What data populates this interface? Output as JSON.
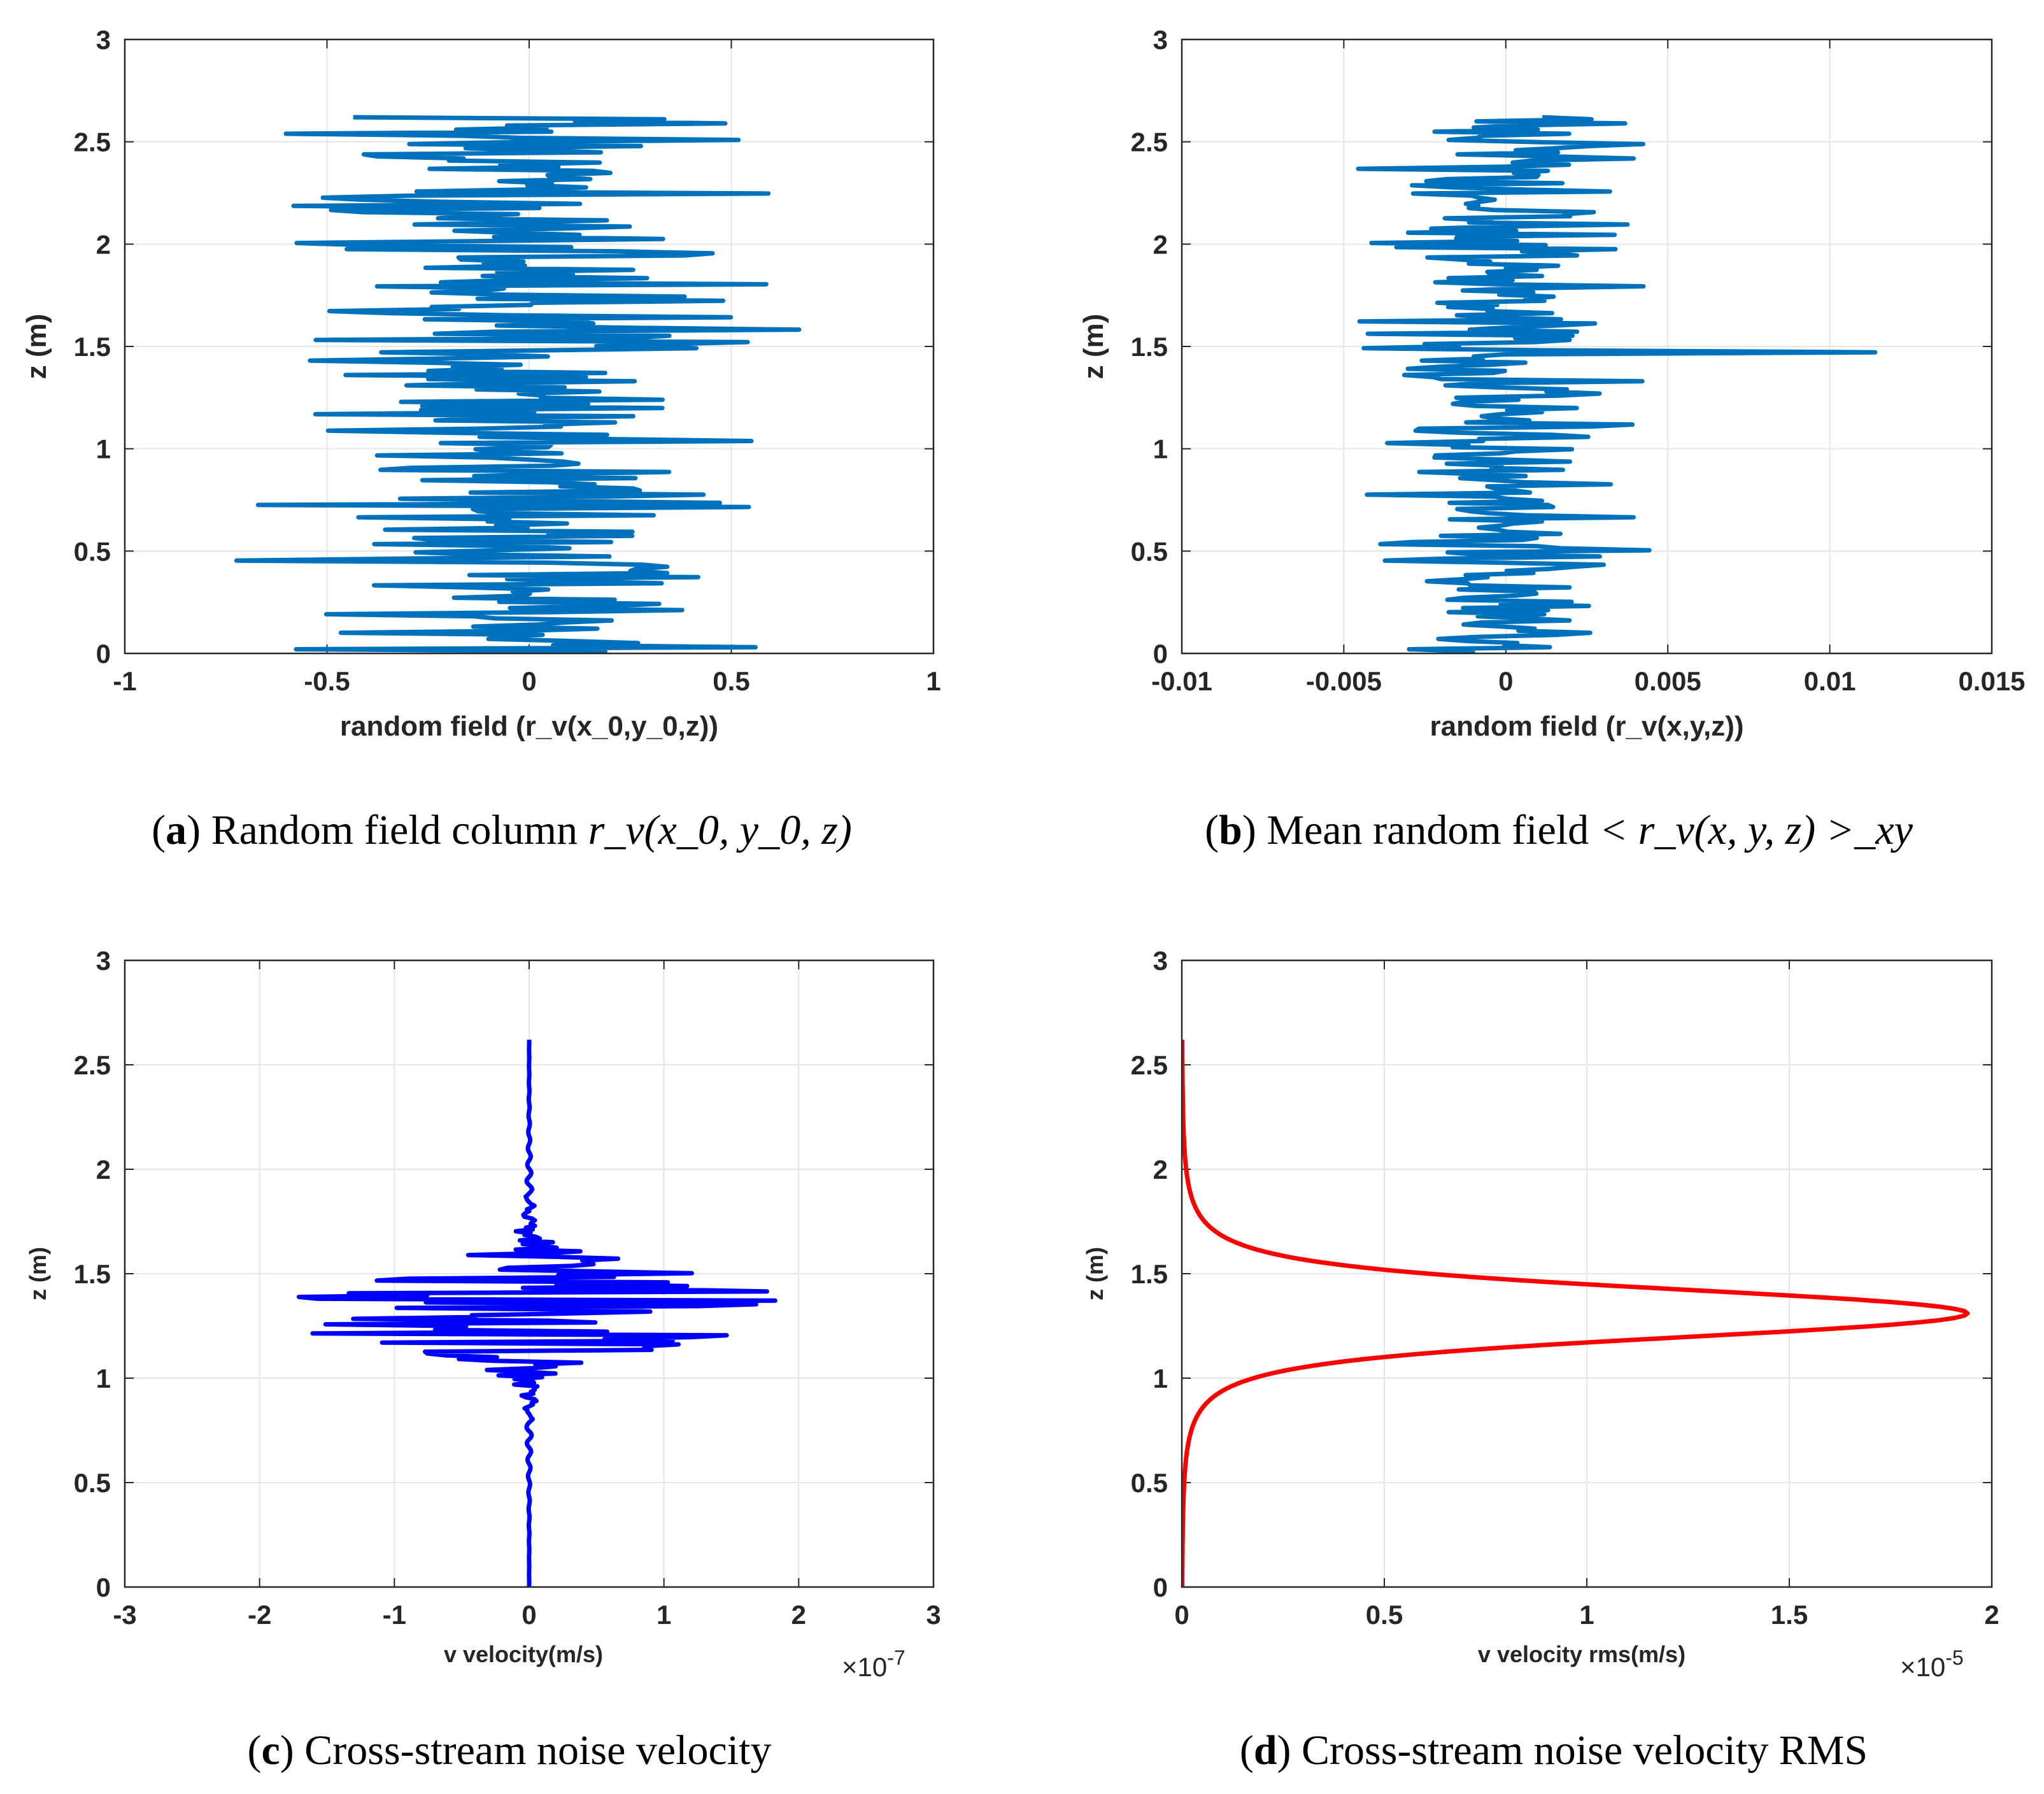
{
  "figure": {
    "panels": [
      {
        "id": "a",
        "caption": {
          "label": "a",
          "text": "Random field column",
          "math": "r_v(x_0, y_0, z)"
        },
        "chart_data": {
          "type": "line",
          "title": "",
          "xlabel": "random field (r_v(x_0,y_0,z))",
          "ylabel": "z (m)",
          "xlim": [
            -1,
            1
          ],
          "ylim": [
            0,
            3
          ],
          "x_ticks": [
            "-1",
            "-0.5",
            "0",
            "0.5",
            "1"
          ],
          "y_ticks": [
            "0",
            "0.5",
            "1",
            "1.5",
            "2",
            "2.5",
            "3"
          ],
          "exponent": "",
          "grid": true,
          "color": "#0072BD",
          "series": [
            {
              "name": "r_v(x0,y0,z)",
              "generator": "noise",
              "amplitude": 0.85,
              "z_max": 2.62,
              "samples": 260,
              "seed": 7,
              "x": [],
              "z": []
            }
          ]
        }
      },
      {
        "id": "b",
        "caption": {
          "label": "b",
          "text": "Mean random field",
          "math": "< r_v(x, y, z) >_xy"
        },
        "chart_data": {
          "type": "line",
          "title": "",
          "xlabel": "random field (r_v(x,y,z))",
          "ylabel": "z (m)",
          "xlim": [
            -0.01,
            0.015
          ],
          "ylim": [
            0,
            3
          ],
          "x_ticks": [
            "-0.01",
            "-0.005",
            "0",
            "0.005",
            "0.01",
            "0.015"
          ],
          "y_ticks": [
            "0",
            "0.5",
            "1",
            "1.5",
            "2",
            "2.5",
            "3"
          ],
          "exponent": "",
          "grid": true,
          "color": "#0072BD",
          "series": [
            {
              "name": "mean r_v",
              "generator": "noise",
              "amplitude": 0.006,
              "peak": [
                1.47,
                0.0114
              ],
              "z_max": 2.62,
              "samples": 260,
              "seed": 19,
              "x": [],
              "z": []
            }
          ]
        }
      },
      {
        "id": "c",
        "caption": {
          "label": "c",
          "text": "Cross-stream noise velocity",
          "math": ""
        },
        "chart_data": {
          "type": "line",
          "title": "",
          "xlabel": "v velocity(m/s)",
          "ylabel": "z (m)",
          "xlim": [
            -3,
            3
          ],
          "ylim": [
            0,
            3
          ],
          "x_ticks": [
            "-3",
            "-2",
            "-1",
            "0",
            "1",
            "2",
            "3"
          ],
          "y_ticks": [
            "0",
            "0.5",
            "1",
            "1.5",
            "2",
            "2.5",
            "3"
          ],
          "exponent_base": "×10",
          "exponent_power": "-7",
          "grid": true,
          "color": "#0000FF",
          "series": [
            {
              "name": "v velocity",
              "generator": "packet",
              "amplitude": 2.2,
              "center": 1.33,
              "width": 0.22,
              "z_max": 2.62,
              "samples": 300,
              "seed": 3,
              "x": [],
              "z": []
            }
          ]
        }
      },
      {
        "id": "d",
        "caption": {
          "label": "d",
          "text": "Cross-stream noise velocity RMS",
          "math": ""
        },
        "chart_data": {
          "type": "line",
          "title": "",
          "xlabel": "v velocity rms(m/s)",
          "ylabel": "z (m)",
          "xlim": [
            0,
            2
          ],
          "ylim": [
            0,
            3
          ],
          "x_ticks": [
            "0",
            "0.5",
            "1",
            "1.5",
            "2"
          ],
          "y_ticks": [
            "0",
            "0.5",
            "1",
            "1.5",
            "2",
            "2.5",
            "3"
          ],
          "exponent_base": "×10",
          "exponent_power": "-5",
          "grid": true,
          "color": "#FF0000",
          "series": [
            {
              "name": "v velocity rms",
              "generator": "lorentz",
              "peak_value": 1.94,
              "center": 1.31,
              "half_width": 0.17,
              "z_max": 2.62,
              "samples": 240,
              "x": [],
              "z": []
            }
          ]
        }
      }
    ]
  }
}
